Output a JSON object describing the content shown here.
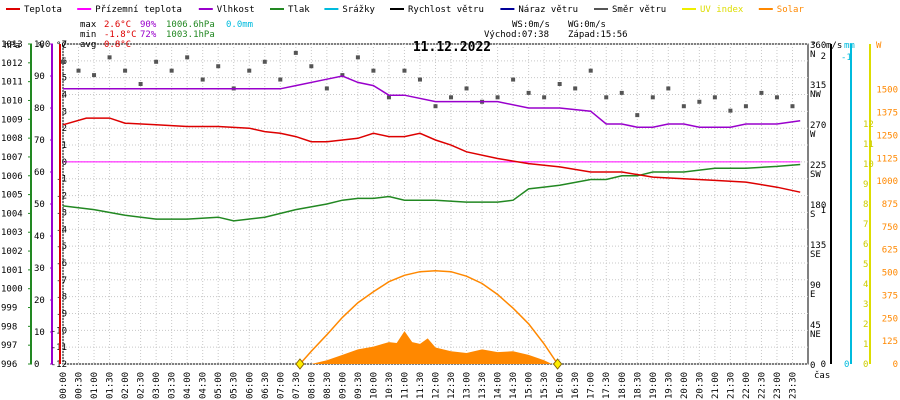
{
  "chart_data": {
    "type": "line",
    "title": "11.12.2022",
    "legend": [
      {
        "label": "Teplota",
        "color": "#dd0000"
      },
      {
        "label": "Přízemní teplota",
        "color": "#ff00ff"
      },
      {
        "label": "Vlhkost",
        "color": "#9900cc"
      },
      {
        "label": "Tlak",
        "color": "#228822"
      },
      {
        "label": "Srážky",
        "color": "#00bbdd"
      },
      {
        "label": "Rychlost větru",
        "color": "#000000"
      },
      {
        "label": "Náraz větru",
        "color": "#000099"
      },
      {
        "label": "Směr větru",
        "color": "#555555"
      },
      {
        "label": "UV index",
        "color": "#eeee00"
      },
      {
        "label": "Solar",
        "color": "#ff8800"
      }
    ],
    "stats": {
      "max_label": "max",
      "max_temp": "2.6°C",
      "max_hum": "90%",
      "max_press": "1006.6hPa",
      "precip": "0.0mm",
      "min_label": "min",
      "min_temp": "-1.8°C",
      "min_hum": "72%",
      "min_press": "1003.1hPa",
      "avg_label": "avg",
      "avg_temp": "0.8°C"
    },
    "wind_info": {
      "ws": "WS:0m/s",
      "wg": "WG:0m/s",
      "sunrise": "Východ:07:38",
      "sunset": "Západ:15:56"
    },
    "axes": {
      "pressure": {
        "unit": "hPa",
        "min": 996,
        "max": 1013,
        "ticks": [
          996,
          997,
          998,
          999,
          1000,
          1001,
          1002,
          1003,
          1004,
          1005,
          1006,
          1007,
          1008,
          1009,
          1010,
          1011,
          1012,
          1013
        ]
      },
      "humidity": {
        "unit": "%",
        "min": 0,
        "max": 100,
        "ticks": [
          0,
          10,
          20,
          30,
          40,
          50,
          60,
          70,
          80,
          90,
          100
        ]
      },
      "temperature": {
        "unit": "°C",
        "min": -12,
        "max": 7,
        "ticks": [
          -12,
          -11,
          -10,
          -9,
          -8,
          -7,
          -6,
          -5,
          -4,
          -3,
          -2,
          -1,
          0,
          1,
          2,
          3,
          4,
          5,
          6,
          7
        ]
      },
      "direction": {
        "unit": "°",
        "min": 0,
        "max": 360,
        "ticks": [
          0,
          45,
          90,
          135,
          180,
          225,
          270,
          315,
          360
        ],
        "labels": [
          "",
          "NE",
          "E",
          "SE",
          "S",
          "SW",
          "W",
          "NW",
          "N"
        ]
      },
      "wind_speed": {
        "unit": "m/s",
        "ticks": [
          "0",
          "1",
          "2"
        ]
      },
      "precip": {
        "unit": "mm",
        "ticks": [
          "0",
          "-1"
        ]
      },
      "uv_index": {
        "ticks": [
          0,
          1,
          2,
          3,
          4,
          5,
          6,
          7,
          8,
          9,
          10,
          11,
          12
        ]
      },
      "solar": {
        "unit": "W",
        "min": 0,
        "max": 1750,
        "ticks": [
          0,
          125,
          250,
          375,
          500,
          625,
          750,
          875,
          1000,
          1125,
          1250,
          1375,
          1500
        ]
      },
      "x": {
        "label": "čas",
        "ticks": [
          "00:00",
          "00:30",
          "01:00",
          "01:30",
          "02:00",
          "02:30",
          "03:00",
          "03:30",
          "04:00",
          "04:30",
          "05:00",
          "05:30",
          "06:00",
          "06:30",
          "07:00",
          "07:30",
          "08:00",
          "08:30",
          "09:00",
          "09:30",
          "10:00",
          "10:30",
          "11:00",
          "11:30",
          "12:00",
          "12:30",
          "13:00",
          "13:30",
          "14:00",
          "14:30",
          "15:00",
          "15:30",
          "16:00",
          "16:30",
          "17:00",
          "17:30",
          "18:00",
          "18:30",
          "19:00",
          "19:30",
          "20:00",
          "20:30",
          "21:00",
          "21:30",
          "22:00",
          "22:30",
          "23:00",
          "23:30"
        ]
      }
    },
    "series": [
      {
        "name": "Teplota",
        "unit": "°C",
        "x": [
          "00:00",
          "00:45",
          "01:30",
          "02:00",
          "03:00",
          "04:00",
          "05:00",
          "06:00",
          "06:30",
          "07:00",
          "07:30",
          "08:00",
          "08:30",
          "09:30",
          "10:00",
          "10:30",
          "11:00",
          "11:30",
          "12:00",
          "12:30",
          "13:00",
          "14:00",
          "15:00",
          "16:00",
          "17:00",
          "18:00",
          "19:00",
          "20:00",
          "21:00",
          "22:00",
          "23:00",
          "23:45"
        ],
        "values": [
          2.2,
          2.6,
          2.6,
          2.3,
          2.2,
          2.1,
          2.1,
          2.0,
          1.8,
          1.7,
          1.5,
          1.2,
          1.2,
          1.4,
          1.7,
          1.5,
          1.5,
          1.7,
          1.3,
          1.0,
          0.6,
          0.2,
          -0.1,
          -0.3,
          -0.6,
          -0.6,
          -0.9,
          -1.0,
          -1.1,
          -1.2,
          -1.5,
          -1.8
        ]
      },
      {
        "name": "Přízemní teplota",
        "unit": "°C",
        "x": [
          "00:00",
          "23:45"
        ],
        "values": [
          0.0,
          0.0
        ]
      },
      {
        "name": "Vlhkost",
        "unit": "%",
        "x": [
          "00:00",
          "00:30",
          "06:00",
          "07:00",
          "07:30",
          "08:30",
          "09:00",
          "09:30",
          "10:00",
          "10:30",
          "11:00",
          "12:00",
          "12:30",
          "13:30",
          "14:00",
          "15:00",
          "16:00",
          "17:00",
          "17:30",
          "18:00",
          "18:30",
          "19:00",
          "19:30",
          "20:00",
          "20:30",
          "21:00",
          "21:30",
          "22:00",
          "22:30",
          "23:00",
          "23:45"
        ],
        "values": [
          86,
          86,
          86,
          86,
          87,
          89,
          90,
          88,
          87,
          84,
          84,
          82,
          82,
          82,
          82,
          80,
          80,
          79,
          75,
          75,
          74,
          74,
          75,
          75,
          74,
          74,
          74,
          75,
          75,
          75,
          76
        ]
      },
      {
        "name": "Tlak",
        "unit": "hPa",
        "x": [
          "00:00",
          "01:00",
          "02:00",
          "03:00",
          "04:00",
          "05:00",
          "05:30",
          "06:30",
          "07:30",
          "08:30",
          "09:00",
          "09:30",
          "10:00",
          "10:30",
          "11:00",
          "11:30",
          "12:00",
          "13:00",
          "14:00",
          "14:30",
          "15:00",
          "15:30",
          "16:00",
          "17:00",
          "17:30",
          "18:00",
          "18:30",
          "19:00",
          "19:30",
          "20:00",
          "21:00",
          "22:00",
          "23:00",
          "23:45"
        ],
        "values": [
          1004.4,
          1004.2,
          1003.9,
          1003.7,
          1003.7,
          1003.8,
          1003.6,
          1003.8,
          1004.2,
          1004.5,
          1004.7,
          1004.8,
          1004.8,
          1004.9,
          1004.7,
          1004.7,
          1004.7,
          1004.6,
          1004.6,
          1004.7,
          1005.3,
          1005.4,
          1005.5,
          1005.8,
          1005.8,
          1006.0,
          1006.0,
          1006.2,
          1006.2,
          1006.2,
          1006.4,
          1006.4,
          1006.5,
          1006.6
        ]
      },
      {
        "name": "Směr větru",
        "unit": "°",
        "style": "scatter",
        "x": [
          "00:00",
          "00:30",
          "01:00",
          "01:30",
          "02:00",
          "02:30",
          "03:00",
          "03:30",
          "04:00",
          "04:30",
          "05:00",
          "05:30",
          "06:00",
          "06:30",
          "07:00",
          "07:30",
          "08:00",
          "08:30",
          "09:00",
          "09:30",
          "10:00",
          "10:30",
          "11:00",
          "11:30",
          "12:00",
          "12:30",
          "13:00",
          "13:30",
          "14:00",
          "14:30",
          "15:00",
          "15:30",
          "16:00",
          "16:30",
          "17:00",
          "17:30",
          "18:00",
          "18:30",
          "19:00",
          "19:30",
          "20:00",
          "20:30",
          "21:00",
          "21:30",
          "22:00",
          "22:30",
          "23:00",
          "23:30"
        ],
        "values": [
          340,
          330,
          325,
          345,
          330,
          315,
          340,
          330,
          345,
          320,
          335,
          310,
          330,
          340,
          320,
          350,
          335,
          310,
          325,
          345,
          330,
          300,
          330,
          320,
          290,
          300,
          310,
          295,
          300,
          320,
          305,
          300,
          315,
          310,
          330,
          300,
          305,
          280,
          300,
          310,
          290,
          295,
          300,
          285,
          290,
          305,
          300,
          290
        ]
      },
      {
        "name": "Solar",
        "unit": "W",
        "style": "line",
        "x": [
          "07:38",
          "08:00",
          "08:30",
          "09:00",
          "09:30",
          "10:00",
          "10:30",
          "11:00",
          "11:30",
          "12:00",
          "12:30",
          "13:00",
          "13:30",
          "14:00",
          "14:30",
          "15:00",
          "15:30",
          "15:56"
        ],
        "values": [
          0,
          70,
          160,
          255,
          335,
          395,
          450,
          485,
          505,
          510,
          505,
          480,
          440,
          380,
          305,
          220,
          110,
          0
        ]
      },
      {
        "name": "Solar",
        "unit": "W",
        "style": "area",
        "x": [
          "08:00",
          "08:30",
          "09:00",
          "09:30",
          "10:00",
          "10:30",
          "10:45",
          "11:00",
          "11:15",
          "11:30",
          "11:45",
          "12:00",
          "12:30",
          "13:00",
          "13:30",
          "14:00",
          "14:30",
          "15:00",
          "15:30",
          "15:45"
        ],
        "values": [
          0,
          20,
          50,
          80,
          95,
          120,
          115,
          180,
          120,
          110,
          140,
          90,
          70,
          60,
          80,
          65,
          70,
          50,
          20,
          0
        ]
      }
    ],
    "markers": [
      {
        "kind": "sunrise",
        "time": "07:38"
      },
      {
        "kind": "sunset",
        "time": "15:56"
      }
    ]
  }
}
